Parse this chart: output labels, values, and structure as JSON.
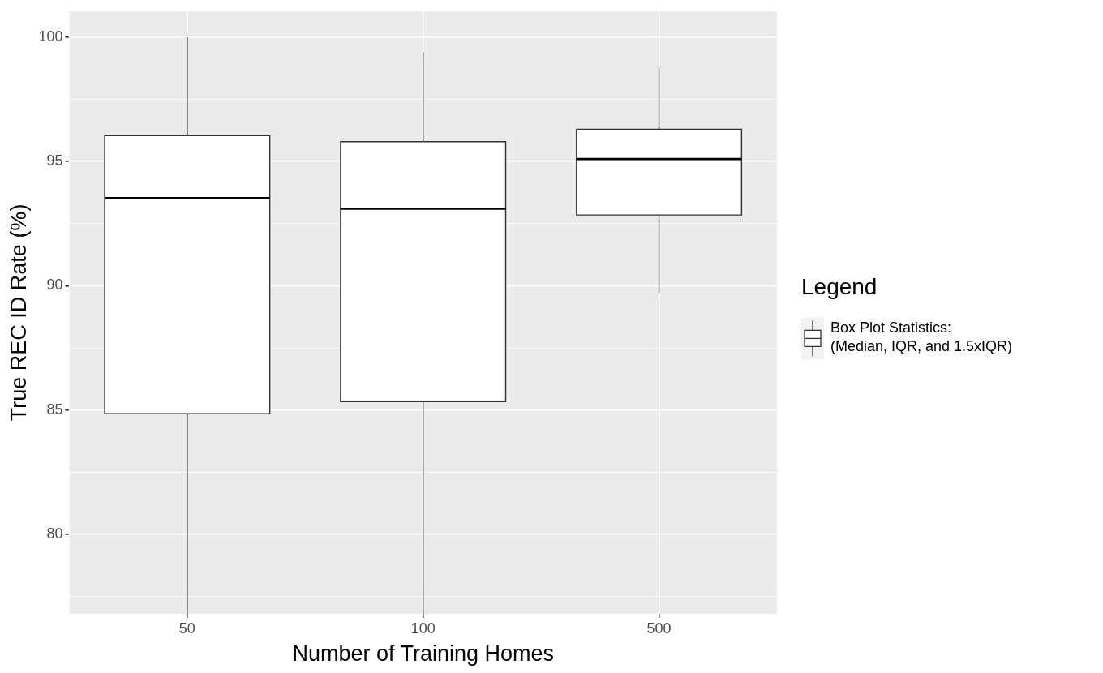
{
  "chart_data": {
    "type": "box",
    "xlabel": "Number of Training Homes",
    "ylabel": "True REC ID Rate (%)",
    "legend_title": "Legend",
    "legend": "right",
    "grid": true,
    "categories": [
      "50",
      "100",
      "500"
    ],
    "ylim": [
      76.8,
      101.05
    ],
    "yticks": [
      {
        "value": 77.5,
        "label": null
      },
      80,
      {
        "value": 82.5,
        "label": null
      },
      85,
      {
        "value": 87.5,
        "label": null
      },
      90,
      {
        "value": 92.5,
        "label": null
      },
      95,
      {
        "value": 97.5,
        "label": null
      },
      100
    ],
    "series": [
      {
        "name": "Box Plot Statistics:\n(Median, IQR, and 1.5xIQR)",
        "color": "#ffffff",
        "boxes": [
          {
            "low": 76.8,
            "q1": 84.85,
            "median": 93.53,
            "q3": 96.04,
            "high": 100
          },
          {
            "low": 76.8,
            "q1": 85.34,
            "median": 93.1,
            "q3": 95.8,
            "high": 99.4
          },
          {
            "low": 89.74,
            "q1": 92.85,
            "median": 95.1,
            "q3": 96.3,
            "high": 98.8
          }
        ]
      }
    ]
  }
}
